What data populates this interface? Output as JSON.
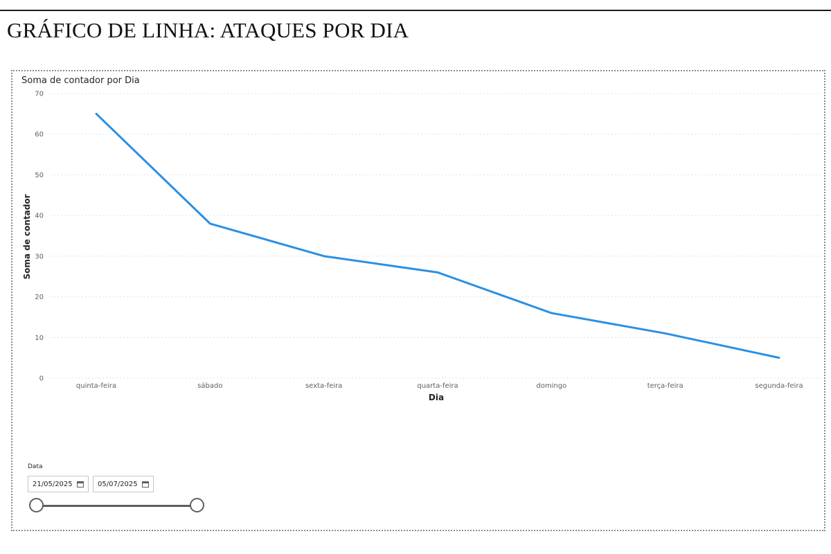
{
  "document": {
    "heading": "GRÁFICO DE LINHA: ATAQUES POR DIA"
  },
  "chart_data": {
    "type": "line",
    "title": "Soma de contador por Dia",
    "xlabel": "Dia",
    "ylabel": "Soma de contador",
    "categories": [
      "quinta-feira",
      "sábado",
      "sexta-feira",
      "quarta-feira",
      "domingo",
      "terça-feira",
      "segunda-feira"
    ],
    "series": [
      {
        "values": [
          65,
          38,
          30,
          26,
          16,
          11,
          5
        ]
      }
    ],
    "ylim": [
      0,
      70
    ],
    "yticks": [
      0,
      10,
      20,
      30,
      40,
      50,
      60,
      70
    ],
    "grid": true,
    "line_color": "#2b8fe3"
  },
  "slicer": {
    "title": "Data",
    "start_date": "21/05/2025",
    "end_date": "05/07/2025",
    "start_icon": "calendar-icon",
    "end_icon": "calendar-icon"
  }
}
